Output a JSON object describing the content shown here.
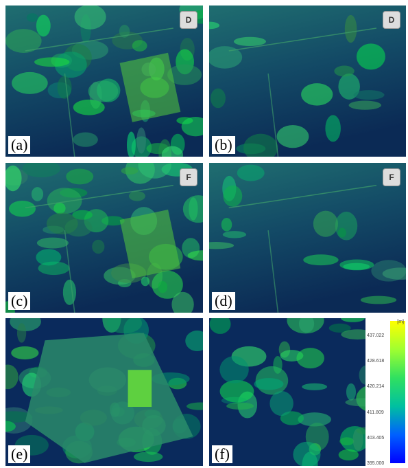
{
  "panels": [
    {
      "label": "(a)",
      "badge": "D"
    },
    {
      "label": "(b)",
      "badge": "D"
    },
    {
      "label": "(c)",
      "badge": "F"
    },
    {
      "label": "(d)",
      "badge": "F"
    },
    {
      "label": "(e)"
    },
    {
      "label": "(f)"
    }
  ],
  "colorbar": {
    "unit": "[m]",
    "ticks": [
      "437.022",
      "428.618",
      "420.214",
      "411.809",
      "403.405",
      "395.000"
    ]
  }
}
